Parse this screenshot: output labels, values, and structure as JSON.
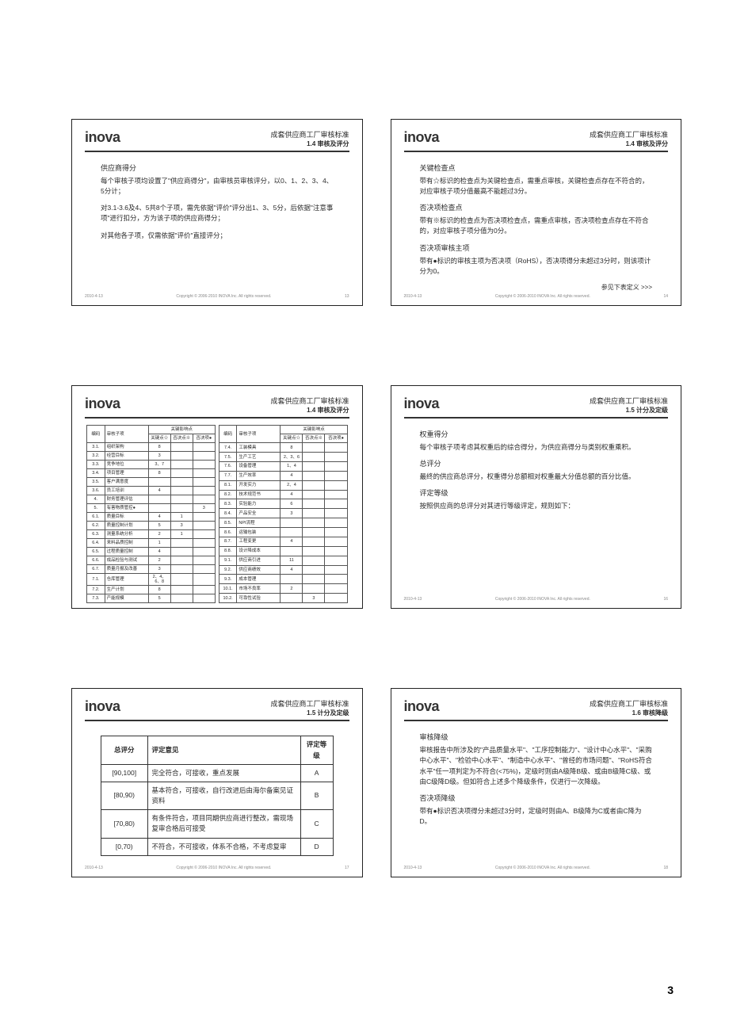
{
  "page_number": "3",
  "common": {
    "logo": "inova",
    "title_main": "成套供应商工厂审核标准",
    "footer_date": "2010-4-13",
    "footer_copyright": "Copyright © 2006-2010 INOVA Inc. All rights reserved."
  },
  "s13": {
    "sub": "1.4 审核及评分",
    "h1": "供应商得分",
    "p1": "每个审核子项均设置了\"供应商得分\"，由审核员审核评分，以0、1、2、3、4、5分计；",
    "p2": "对3.1-3.6及4、5共8个子项，需先依据\"评价\"评分出1、3、5分，后依据\"注意事项\"进行扣分，方为该子项的供应商得分；",
    "p3": "对其他各子项，仅需依据\"评价\"直接评分；",
    "page": "13"
  },
  "s14": {
    "sub": "1.4 审核及评分",
    "h1": "关键检查点",
    "p1": "带有☆标识的检查点为关键检查点，需重点审核，关键检查点存在不符合的，对应审核子项分值最高不能超过3分。",
    "h2": "否决项检查点",
    "p2": "带有※标识的检查点为否决项检查点，需重点审核，否决项检查点存在不符合的，对应审核子项分值为0分。",
    "h3": "否决项审核主项",
    "p3": "带有●标识的审核主项为否决项（RoHS），否决项得分未超过3分时，则该项计分为0。",
    "more": "参见下表定义 >>>",
    "page": "14"
  },
  "s15": {
    "sub": "1.4 审核及评分",
    "th_id": "编码",
    "th_name": "审核子项",
    "th_grp": "关键影响点",
    "th_c1": "关键点☆",
    "th_c2": "否决点※",
    "th_c3": "否决项●",
    "left": [
      [
        "3.1.",
        "组织架构",
        "8",
        "",
        ""
      ],
      [
        "3.2.",
        "经营目标",
        "3",
        "",
        ""
      ],
      [
        "3.3.",
        "竞争地位",
        "3、7",
        "",
        ""
      ],
      [
        "3.4.",
        "项目管理",
        "8",
        "",
        ""
      ],
      [
        "3.5.",
        "客户满意度",
        "",
        "",
        ""
      ],
      [
        "3.6.",
        "员工培训",
        "4",
        "",
        ""
      ],
      [
        "4.",
        "财务管理评估",
        "",
        "",
        ""
      ],
      [
        "5.",
        "有害物质管控●",
        "",
        "",
        "3"
      ],
      [
        "6.1.",
        "质量目标",
        "4",
        "1",
        ""
      ],
      [
        "6.2.",
        "质量控制计划",
        "5",
        "3",
        ""
      ],
      [
        "6.3.",
        "测量系统分析",
        "2",
        "1",
        ""
      ],
      [
        "6.4.",
        "来料品质控制",
        "1",
        "",
        ""
      ],
      [
        "6.5.",
        "过程质量控制",
        "4",
        "",
        ""
      ],
      [
        "6.6.",
        "成品检验与测试",
        "2",
        "",
        ""
      ],
      [
        "6.7.",
        "质量月报及改善",
        "3",
        "",
        ""
      ],
      [
        "7.1.",
        "仓库管理",
        "2、4、6、8",
        "",
        ""
      ],
      [
        "7.2.",
        "生产计划",
        "8",
        "",
        ""
      ],
      [
        "7.3.",
        "产能规模",
        "5",
        "",
        ""
      ]
    ],
    "right": [
      [
        "7.4.",
        "工装模具",
        "8",
        "",
        ""
      ],
      [
        "7.5.",
        "生产工艺",
        "2、3、6",
        "",
        ""
      ],
      [
        "7.6.",
        "设备管理",
        "1、4",
        "",
        ""
      ],
      [
        "7.7.",
        "生产效率",
        "4",
        "",
        ""
      ],
      [
        "8.1.",
        "开发实力",
        "2、4",
        "",
        ""
      ],
      [
        "8.2.",
        "技术规范书",
        "4",
        "",
        ""
      ],
      [
        "8.3.",
        "实验能力",
        "6",
        "",
        ""
      ],
      [
        "8.4.",
        "产品安全",
        "3",
        "",
        ""
      ],
      [
        "8.5.",
        "NPI流程",
        "",
        "",
        ""
      ],
      [
        "8.6.",
        "运输包装",
        "",
        "",
        ""
      ],
      [
        "8.7.",
        "工程变更",
        "4",
        "",
        ""
      ],
      [
        "8.8.",
        "设计降成本",
        "",
        "",
        ""
      ],
      [
        "9.1.",
        "供应商引进",
        "11",
        "",
        ""
      ],
      [
        "9.2.",
        "供应商绩效",
        "4",
        "",
        ""
      ],
      [
        "9.3.",
        "成本管理",
        "",
        "",
        ""
      ],
      [
        "10.1.",
        "市场不良率",
        "2",
        "",
        ""
      ],
      [
        "10.2.",
        "可靠性试验",
        "",
        "3",
        ""
      ]
    ],
    "page": "15"
  },
  "s16": {
    "sub": "1.5 计分及定级",
    "h1": "权重得分",
    "p1": "每个审核子项考虑其权重后的综合得分，为供应商得分与类别权重乘积。",
    "h2": "总评分",
    "p2": "最终的供应商总评分，权重得分总额相对权重最大分值总额的百分比值。",
    "h3": "评定等级",
    "p3": "按照供应商的总评分对其进行等级评定，规则如下：",
    "page": "16"
  },
  "s17": {
    "sub": "1.5 计分及定级",
    "th1": "总评分",
    "th2": "评定意见",
    "th3": "评定等级",
    "rows": [
      [
        "[90,100]",
        "完全符合，可接收，重点发展",
        "A"
      ],
      [
        "[80,90)",
        "基本符合，可接收，自行改进后由海尔备案见证资料",
        "B"
      ],
      [
        "[70,80)",
        "有条件符合，项目同期供应商进行整改，需现场复审合格后可接受",
        "C"
      ],
      [
        "[0,70)",
        "不符合，不可接收，体系不合格，不考虑复审",
        "D"
      ]
    ],
    "page": "17"
  },
  "s18": {
    "sub": "1.6 审核降级",
    "h1": "审核降级",
    "p1": "审核报告中所涉及的\"产品质量水平\"、\"工序控制能力\"、\"设计中心水平\"、\"采购中心水平\"、\"检验中心水平\"、\"制造中心水平\"、\"曾经的市场问题\"、\"RoHS符合水平\"任一项判定为不符合(<75%)，定级时则由A级降B级、或由B级降C级、或由C级降D级。但如符合上述多个降级条件，仅进行一次降级。",
    "h2": "否决项降级",
    "p2": "带有●标识否决项得分未超过3分时，定级时则由A、B级降为C或者由C降为D。",
    "page": "18"
  }
}
